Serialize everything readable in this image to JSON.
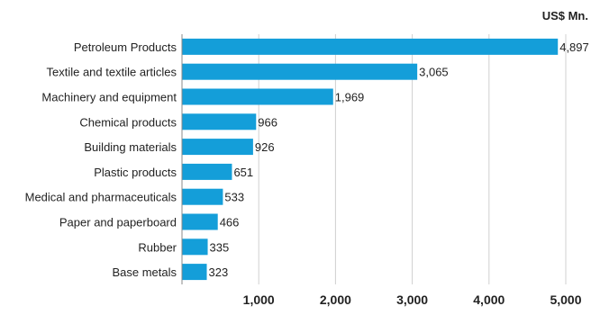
{
  "chart_data": {
    "type": "bar",
    "orientation": "horizontal",
    "unit_label": "US$ Mn.",
    "categories": [
      "Petroleum Products",
      "Textile and textile articles",
      "Machinery and equipment",
      "Chemical products",
      "Building materials",
      "Plastic products",
      "Medical and pharmaceuticals",
      "Paper and paperboard",
      "Rubber",
      "Base metals"
    ],
    "values": [
      4897,
      3065,
      1969,
      966,
      926,
      651,
      533,
      466,
      335,
      323
    ],
    "value_labels": [
      "4,897",
      "3,065",
      "1,969",
      "966",
      "926",
      "651",
      "533",
      "466",
      "335",
      "323"
    ],
    "x_ticks": [
      1000,
      2000,
      3000,
      4000,
      5000
    ],
    "x_tick_labels": [
      "1,000",
      "2,000",
      "3,000",
      "4,000",
      "5,000"
    ],
    "xlim": [
      0,
      5000
    ],
    "grid": "vertical",
    "legend": "none",
    "colors": {
      "bar": "#149ED9",
      "grid": "#D0D0D0",
      "axis": "#888888",
      "text": "#222222"
    }
  }
}
